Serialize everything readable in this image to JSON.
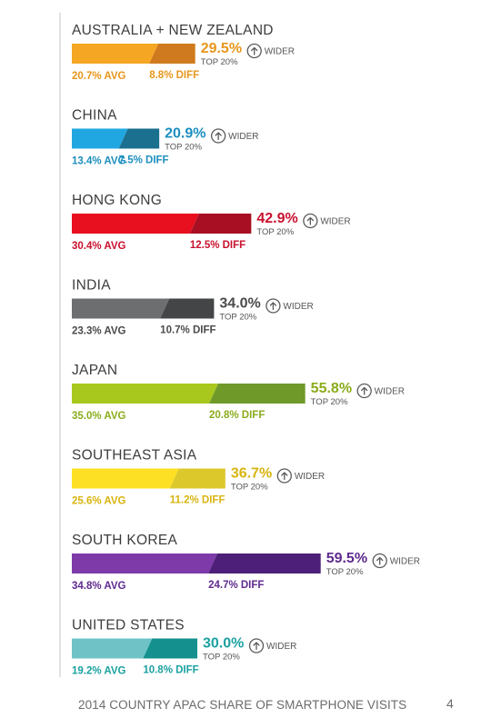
{
  "chart_data": {
    "type": "bar",
    "unit": "%",
    "top_label": "TOP 20%",
    "wider_label": "WIDER",
    "avg_suffix": "AVG",
    "diff_suffix": "DIFF",
    "xlim": [
      0,
      65
    ],
    "series": [
      {
        "name": "AVG",
        "values": [
          20.7,
          13.4,
          30.4,
          23.3,
          35.0,
          25.6,
          34.8,
          19.2
        ]
      },
      {
        "name": "DIFF",
        "values": [
          8.8,
          7.5,
          12.5,
          10.7,
          20.8,
          11.2,
          24.7,
          10.8
        ]
      },
      {
        "name": "TOP 20%",
        "values": [
          29.5,
          20.9,
          42.9,
          34.0,
          55.8,
          36.7,
          59.5,
          30.0
        ]
      }
    ],
    "countries": [
      {
        "name": "AUSTRALIA + NEW ZEALAND",
        "top": "29.5%",
        "avg": "20.7% AVG",
        "diff": "8.8% DIFF",
        "avg_value": 20.7,
        "diff_value": 8.8,
        "top_value": 29.5,
        "avg_color": "#f5a623",
        "diff_color": "#cf7a1e",
        "label_color": "#e8961c"
      },
      {
        "name": "CHINA",
        "top": "20.9%",
        "avg": "13.4% AVG",
        "diff": "7.5% DIFF",
        "avg_value": 13.4,
        "diff_value": 7.5,
        "top_value": 20.9,
        "avg_color": "#20a7e1",
        "diff_color": "#1b6f8f",
        "label_color": "#1c8fbf"
      },
      {
        "name": "HONG KONG",
        "top": "42.9%",
        "avg": "30.4% AVG",
        "diff": "12.5% DIFF",
        "avg_value": 30.4,
        "diff_value": 12.5,
        "top_value": 42.9,
        "avg_color": "#e8101f",
        "diff_color": "#a80f22",
        "label_color": "#c8102e"
      },
      {
        "name": "INDIA",
        "top": "34.0%",
        "avg": "23.3% AVG",
        "diff": "10.7% DIFF",
        "avg_value": 23.3,
        "diff_value": 10.7,
        "top_value": 34.0,
        "avg_color": "#6d6e70",
        "diff_color": "#444547",
        "label_color": "#4a4a4c"
      },
      {
        "name": "JAPAN",
        "top": "55.8%",
        "avg": "35.0% AVG",
        "diff": "20.8% DIFF",
        "avg_value": 35.0,
        "diff_value": 20.8,
        "top_value": 55.8,
        "avg_color": "#a8c81e",
        "diff_color": "#6f9a2a",
        "label_color": "#8aac1c"
      },
      {
        "name": "SOUTHEAST ASIA",
        "top": "36.7%",
        "avg": "25.6% AVG",
        "diff": "11.2% DIFF",
        "avg_value": 25.6,
        "diff_value": 11.2,
        "top_value": 36.7,
        "avg_color": "#fde023",
        "diff_color": "#dcc82a",
        "label_color": "#d9b40f"
      },
      {
        "name": "SOUTH KOREA",
        "top": "59.5%",
        "avg": "34.8% AVG",
        "diff": "24.7% DIFF",
        "avg_value": 34.8,
        "diff_value": 24.7,
        "top_value": 59.5,
        "avg_color": "#7d3aa8",
        "diff_color": "#4e1f78",
        "label_color": "#5f2a8e"
      },
      {
        "name": "UNITED STATES",
        "top": "30.0%",
        "avg": "19.2% AVG",
        "diff": "10.8% DIFF",
        "avg_value": 19.2,
        "diff_value": 10.8,
        "top_value": 30.0,
        "avg_color": "#6fc3c6",
        "diff_color": "#14918e",
        "label_color": "#1ba1a0"
      }
    ],
    "legend": "none",
    "grid": false
  },
  "footer": {
    "title": "2014 COUNTRY APAC SHARE OF SMARTPHONE VISITS",
    "page_number": "4"
  },
  "colors": {
    "title_text": "#3d3d3d",
    "secondary_text": "#555555",
    "axis_line": "#cfcfcf",
    "background": "#ffffff"
  },
  "icons": {
    "wider": "arrow-up-circle-icon"
  }
}
